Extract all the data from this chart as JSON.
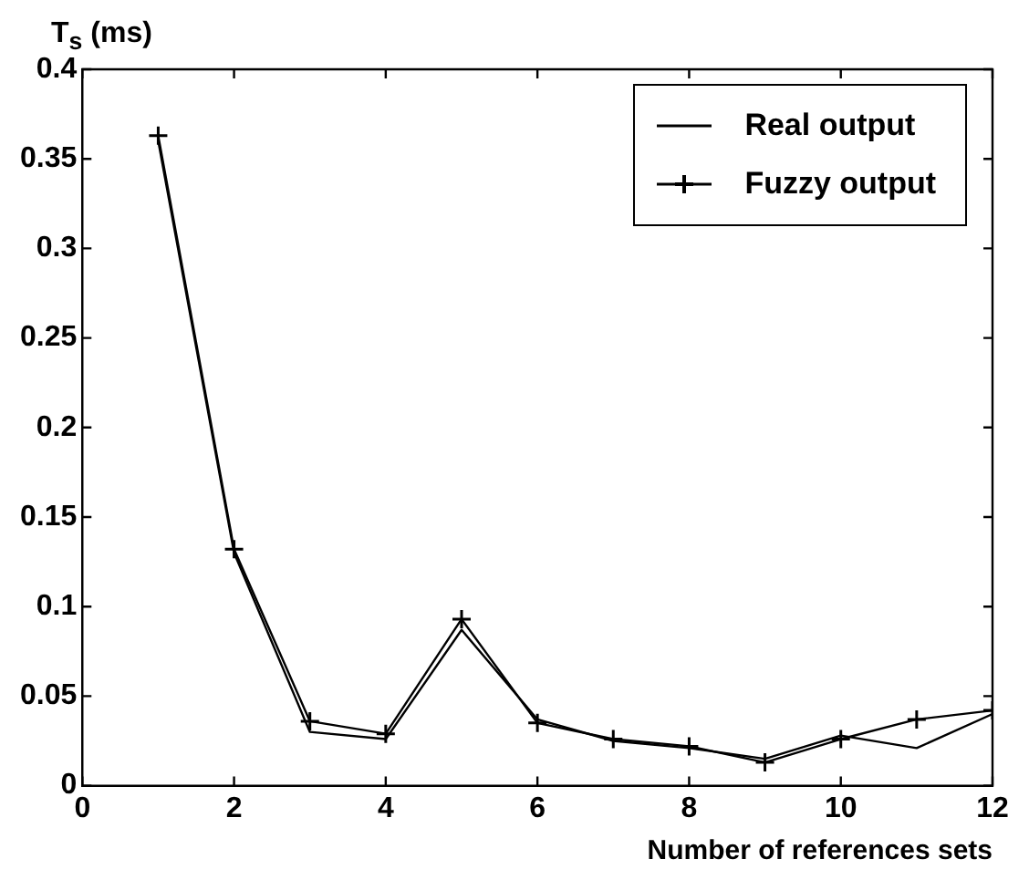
{
  "chart_data": {
    "type": "line",
    "ylabel": "T$_{s}$ (ms)",
    "xlabel": "Number of references sets",
    "x": [
      1,
      2,
      3,
      4,
      5,
      6,
      7,
      8,
      9,
      10,
      11,
      12
    ],
    "series": [
      {
        "name": "Real output",
        "color": "#000000",
        "marker": "none",
        "values": [
          0.36,
          0.13,
          0.03,
          0.026,
          0.087,
          0.037,
          0.025,
          0.021,
          0.015,
          0.028,
          0.021,
          0.04
        ]
      },
      {
        "name": "Fuzzy output",
        "color": "#000000",
        "marker": "cross",
        "values": [
          0.363,
          0.132,
          0.036,
          0.029,
          0.093,
          0.035,
          0.026,
          0.022,
          0.013,
          0.026,
          0.037,
          0.042
        ]
      }
    ],
    "xlim": [
      0,
      12
    ],
    "xticks": [
      0,
      2,
      4,
      6,
      8,
      10,
      12
    ],
    "ylim": [
      0,
      0.4
    ],
    "yticks": [
      0,
      0.05,
      0.1,
      0.15,
      0.2,
      0.25,
      0.3,
      0.35,
      0.4
    ],
    "grid": false,
    "legend": "top right"
  }
}
